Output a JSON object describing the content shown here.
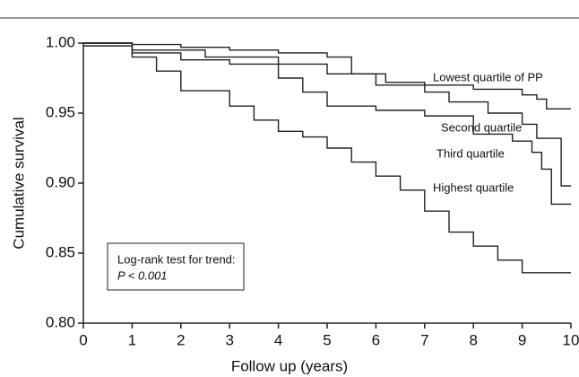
{
  "chart_data": {
    "type": "line",
    "step": "post",
    "xlabel": "Follow up (years)",
    "ylabel": "Cumulative survival",
    "xlim": [
      0,
      10
    ],
    "ylim": [
      0.8,
      1.0
    ],
    "xticks": [
      0,
      1,
      2,
      3,
      4,
      5,
      6,
      7,
      8,
      9,
      10
    ],
    "yticks": [
      {
        "value": 0.8,
        "label": "0.80"
      },
      0.85,
      {
        "value": 0.9,
        "label": "0.90"
      },
      0.95,
      {
        "value": 1.0,
        "label": "1.00"
      }
    ],
    "series": [
      {
        "name": "Lowest quartile of PP",
        "color": "#222222",
        "x": [
          0,
          1,
          2,
          3,
          4,
          5,
          5.5,
          6.2,
          7,
          8,
          9,
          9.3,
          9.5,
          10
        ],
        "values": [
          1.0,
          0.999,
          0.997,
          0.995,
          0.993,
          0.99,
          0.978,
          0.972,
          0.97,
          0.967,
          0.963,
          0.96,
          0.953,
          0.953
        ]
      },
      {
        "name": "Second quartile",
        "color": "#222222",
        "x": [
          0,
          1,
          2.5,
          4,
          5,
          6,
          7,
          7.5,
          8.3,
          9,
          9.3,
          9.8,
          10
        ],
        "values": [
          1.0,
          0.995,
          0.99,
          0.985,
          0.978,
          0.97,
          0.965,
          0.958,
          0.95,
          0.942,
          0.932,
          0.898,
          0.898
        ]
      },
      {
        "name": "Third quartile",
        "color": "#222222",
        "x": [
          0,
          1,
          2,
          3,
          4,
          4.5,
          5,
          6,
          7,
          8,
          8.8,
          9.2,
          9.4,
          9.6,
          10
        ],
        "values": [
          1.0,
          0.993,
          0.988,
          0.985,
          0.975,
          0.965,
          0.955,
          0.952,
          0.948,
          0.935,
          0.93,
          0.922,
          0.91,
          0.885,
          0.885
        ]
      },
      {
        "name": "Highest quartile",
        "color": "#222222",
        "x": [
          0,
          1,
          1.5,
          2,
          3,
          3.5,
          4,
          4.5,
          5,
          5.5,
          6,
          6.5,
          7,
          7.5,
          8,
          8.5,
          9,
          10
        ],
        "values": [
          0.998,
          0.99,
          0.98,
          0.966,
          0.955,
          0.945,
          0.937,
          0.933,
          0.925,
          0.915,
          0.905,
          0.895,
          0.88,
          0.865,
          0.855,
          0.845,
          0.836,
          0.836
        ]
      }
    ],
    "annotation": [
      "Log-rank test for trend:",
      "P < 0.001"
    ]
  }
}
